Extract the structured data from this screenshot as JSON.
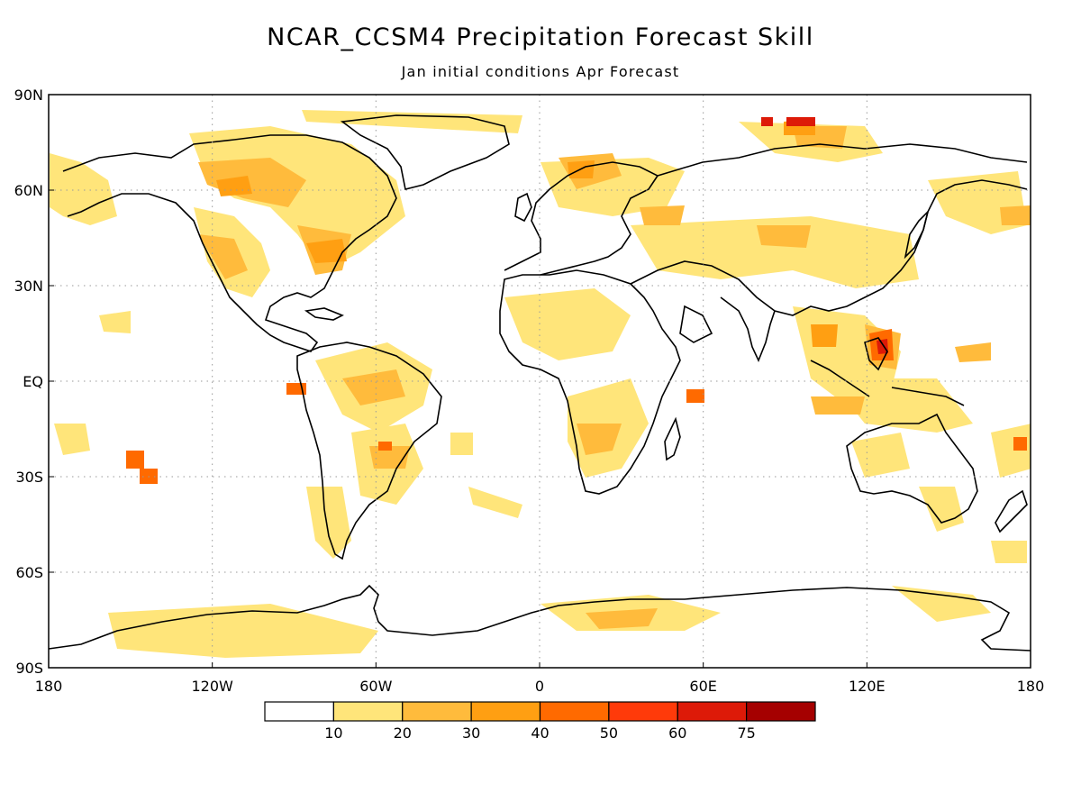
{
  "title": "NCAR_CCSM4 Precipitation Forecast Skill",
  "subtitle": "Jan initial conditions  Apr Forecast",
  "lat_labels": [
    "90N",
    "60N",
    "30N",
    "EQ",
    "30S",
    "60S",
    "90S"
  ],
  "lat_values": [
    90,
    60,
    30,
    0,
    -30,
    -60,
    -90
  ],
  "lon_labels": [
    "180",
    "120W",
    "60W",
    "0",
    "60E",
    "120E",
    "180"
  ],
  "lon_values": [
    -180,
    -120,
    -60,
    0,
    60,
    120,
    180
  ],
  "colorbar": {
    "labels": [
      "10",
      "20",
      "30",
      "40",
      "50",
      "60",
      "75"
    ],
    "colors": [
      "#ffffff",
      "#ffe57a",
      "#ffbb3c",
      "#ff9f12",
      "#ff6a00",
      "#ff3a0a",
      "#dd1a08",
      "#a50000"
    ]
  },
  "colors": {
    "coastline": "#000000",
    "grid": "#9a9a9a",
    "frame": "#000000"
  }
}
